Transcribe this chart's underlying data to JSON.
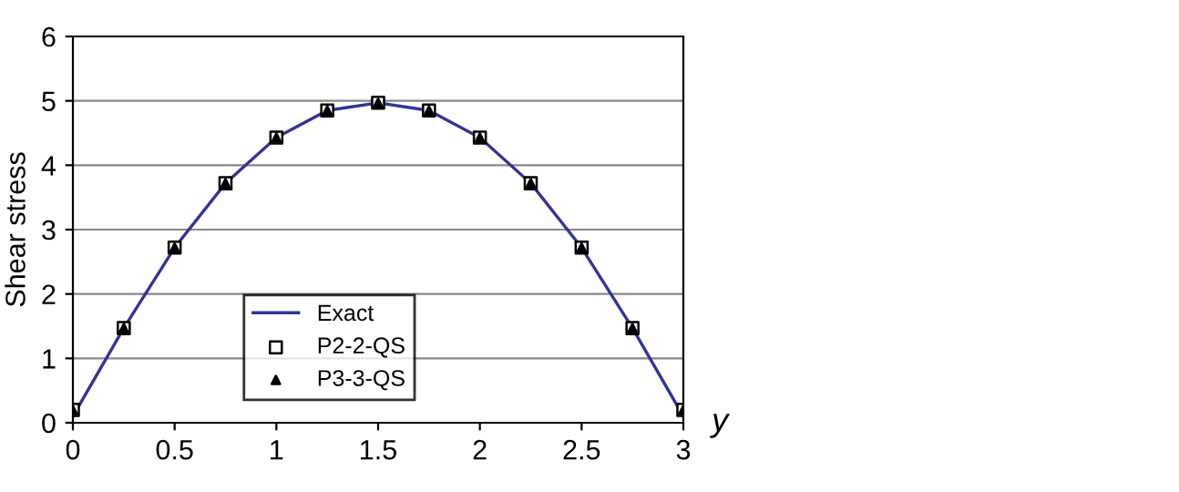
{
  "chart_data": {
    "type": "line",
    "xlabel": "y",
    "ylabel": "Shear stress",
    "xlim": [
      0,
      3
    ],
    "ylim": [
      0,
      6
    ],
    "xticks": [
      0,
      0.5,
      1,
      1.5,
      2,
      2.5,
      3
    ],
    "yticks": [
      0,
      1,
      2,
      3,
      4,
      5,
      6
    ],
    "grid": "y",
    "legend": "bottom",
    "x": [
      0,
      0.25,
      0.5,
      0.75,
      1,
      1.25,
      1.5,
      1.75,
      2,
      2.25,
      2.5,
      2.75,
      3
    ],
    "series": [
      {
        "name": "Exact",
        "color": "#333399",
        "marker": "none",
        "values": [
          0.1,
          1.47,
          2.72,
          3.72,
          4.43,
          4.85,
          4.97,
          4.85,
          4.43,
          3.72,
          2.72,
          1.47,
          0.1
        ]
      },
      {
        "name": "P2-2-QS",
        "type": "scatter",
        "color": "#000000",
        "marker": "square",
        "values": [
          0.2,
          1.47,
          2.72,
          3.72,
          4.43,
          4.85,
          4.97,
          4.85,
          4.43,
          3.72,
          2.72,
          1.47,
          0.2
        ]
      },
      {
        "name": "P3-3-QS",
        "type": "scatter",
        "color": "#000000",
        "marker": "triangle",
        "values": [
          0.2,
          1.47,
          2.72,
          3.72,
          4.43,
          4.85,
          4.97,
          4.85,
          4.43,
          3.72,
          2.72,
          1.47,
          0.2
        ]
      }
    ]
  }
}
